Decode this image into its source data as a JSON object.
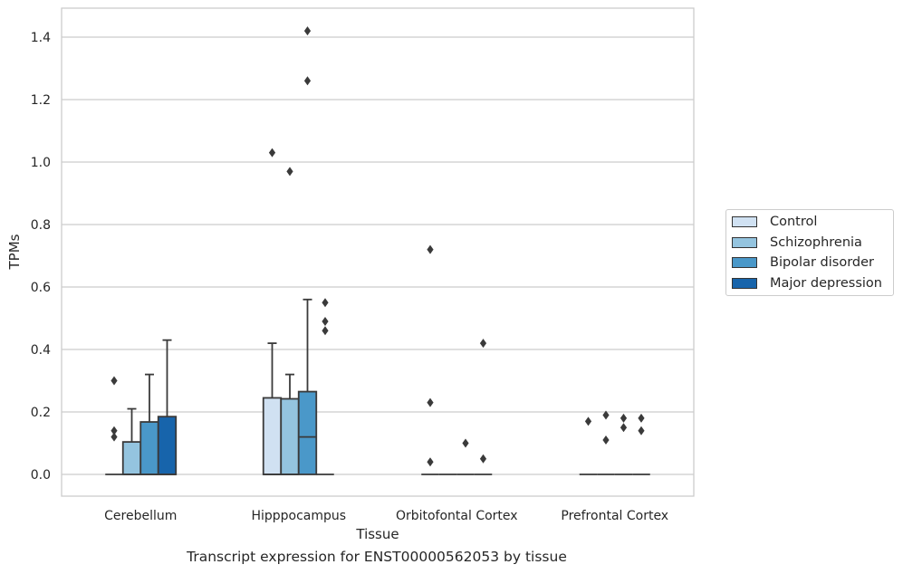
{
  "chart_data": {
    "type": "box",
    "xlabel": "Tissue",
    "ylabel": "TPMs",
    "caption": "Transcript expression for ENST00000562053 by tissue",
    "ylim": [
      -0.07,
      1.49
    ],
    "yticks": [
      0.0,
      0.2,
      0.4,
      0.6,
      0.8,
      1.0,
      1.2,
      1.4
    ],
    "ytick_labels": [
      "0.0",
      "0.2",
      "0.4",
      "0.6",
      "0.8",
      "1.0",
      "1.2",
      "1.4"
    ],
    "grid": "horizontal",
    "legend_position": "right",
    "categories": [
      "Cerebellum",
      "Hipppocampus",
      "Orbitofontal Cortex",
      "Prefrontal Cortex"
    ],
    "series": [
      {
        "name": "Control",
        "color": "#d0e1f2",
        "boxes": [
          {
            "q1": 0,
            "median": 0,
            "q3": 0,
            "whisker_low": 0,
            "whisker_high": 0,
            "outliers": [
              0.3,
              0.14,
              0.12
            ]
          },
          {
            "q1": 0,
            "median": 0,
            "q3": 0.245,
            "whisker_low": 0,
            "whisker_high": 0.42,
            "outliers": [
              1.03
            ]
          },
          {
            "q1": 0,
            "median": 0,
            "q3": 0,
            "whisker_low": 0,
            "whisker_high": 0,
            "outliers": [
              0.72,
              0.23,
              0.04
            ]
          },
          {
            "q1": 0,
            "median": 0,
            "q3": 0,
            "whisker_low": 0,
            "whisker_high": 0,
            "outliers": [
              0.17
            ]
          }
        ]
      },
      {
        "name": "Schizophrenia",
        "color": "#94c4df",
        "boxes": [
          {
            "q1": 0,
            "median": 0,
            "q3": 0.104,
            "whisker_low": 0,
            "whisker_high": 0.21,
            "outliers": []
          },
          {
            "q1": 0,
            "median": 0,
            "q3": 0.242,
            "whisker_low": 0,
            "whisker_high": 0.32,
            "outliers": [
              0.97
            ]
          },
          {
            "q1": 0,
            "median": 0,
            "q3": 0,
            "whisker_low": 0,
            "whisker_high": 0,
            "outliers": []
          },
          {
            "q1": 0,
            "median": 0,
            "q3": 0,
            "whisker_low": 0,
            "whisker_high": 0,
            "outliers": [
              0.19,
              0.11
            ]
          }
        ]
      },
      {
        "name": "Bipolar disorder",
        "color": "#4a98c9",
        "boxes": [
          {
            "q1": 0,
            "median": 0,
            "q3": 0.168,
            "whisker_low": 0,
            "whisker_high": 0.32,
            "outliers": []
          },
          {
            "q1": 0,
            "median": 0.12,
            "q3": 0.265,
            "whisker_low": 0,
            "whisker_high": 0.56,
            "outliers": [
              1.42,
              1.26
            ]
          },
          {
            "q1": 0,
            "median": 0,
            "q3": 0,
            "whisker_low": 0,
            "whisker_high": 0,
            "outliers": [
              0.1
            ]
          },
          {
            "q1": 0,
            "median": 0,
            "q3": 0,
            "whisker_low": 0,
            "whisker_high": 0,
            "outliers": [
              0.18,
              0.15
            ]
          }
        ]
      },
      {
        "name": "Major depression",
        "color": "#1764ab",
        "boxes": [
          {
            "q1": 0,
            "median": 0,
            "q3": 0.185,
            "whisker_low": 0,
            "whisker_high": 0.43,
            "outliers": []
          },
          {
            "q1": 0,
            "median": 0,
            "q3": 0,
            "whisker_low": 0,
            "whisker_high": 0,
            "outliers": [
              0.55,
              0.49,
              0.46
            ]
          },
          {
            "q1": 0,
            "median": 0,
            "q3": 0,
            "whisker_low": 0,
            "whisker_high": 0,
            "outliers": [
              0.42,
              0.05
            ]
          },
          {
            "q1": 0,
            "median": 0,
            "q3": 0,
            "whisker_low": 0,
            "whisker_high": 0,
            "outliers": [
              0.18,
              0.14
            ]
          }
        ]
      }
    ]
  }
}
